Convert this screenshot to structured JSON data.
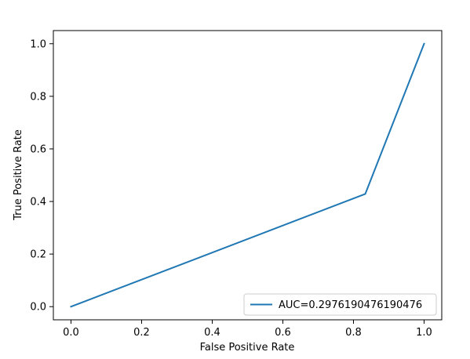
{
  "chart_data": {
    "type": "line",
    "title": "",
    "xlabel": "False Positive Rate",
    "ylabel": "True Positive Rate",
    "xlim": [
      -0.05,
      1.05
    ],
    "ylim": [
      -0.05,
      1.05
    ],
    "xticks": [
      0.0,
      0.2,
      0.4,
      0.6,
      0.8,
      1.0
    ],
    "yticks": [
      0.0,
      0.2,
      0.4,
      0.6,
      0.8,
      1.0
    ],
    "xtick_labels": [
      "0.0",
      "0.2",
      "0.4",
      "0.6",
      "0.8",
      "1.0"
    ],
    "ytick_labels": [
      "0.0",
      "0.2",
      "0.4",
      "0.6",
      "0.8",
      "1.0"
    ],
    "grid": false,
    "legend_position": "lower-right",
    "series": [
      {
        "name": "AUC=0.2976190476190476",
        "color": "#1f77b4",
        "x": [
          0.0,
          0.8333,
          1.0
        ],
        "y": [
          0.0,
          0.4286,
          1.0
        ]
      }
    ]
  }
}
